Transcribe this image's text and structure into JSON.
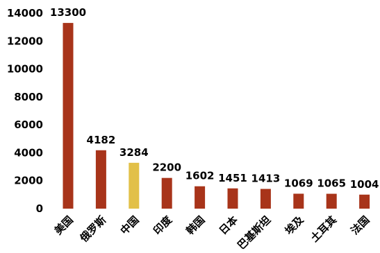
{
  "chart_data": {
    "type": "bar",
    "categories": [
      "美国",
      "俄罗斯",
      "中国",
      "印度",
      "韩国",
      "日本",
      "巴基斯坦",
      "埃及",
      "土耳其",
      "法国"
    ],
    "values": [
      13300,
      4182,
      3284,
      2200,
      1602,
      1451,
      1413,
      1069,
      1065,
      1004
    ],
    "value_labels": [
      "13300",
      "4182",
      "3284",
      "2200",
      "1602",
      "1451",
      "1413",
      "1069",
      "1065",
      "1004"
    ],
    "ylim": [
      0,
      14000
    ],
    "yticks": [
      0,
      2000,
      4000,
      6000,
      8000,
      10000,
      12000,
      14000
    ],
    "ytick_labels": [
      "0",
      "2000",
      "4000",
      "6000",
      "8000",
      "10000",
      "12000",
      "14000"
    ],
    "grid": false,
    "bar_color": "#A8341A",
    "highlight_color": "#E2C048",
    "highlight_category": "中国",
    "title": "",
    "xlabel": "",
    "ylabel": ""
  }
}
